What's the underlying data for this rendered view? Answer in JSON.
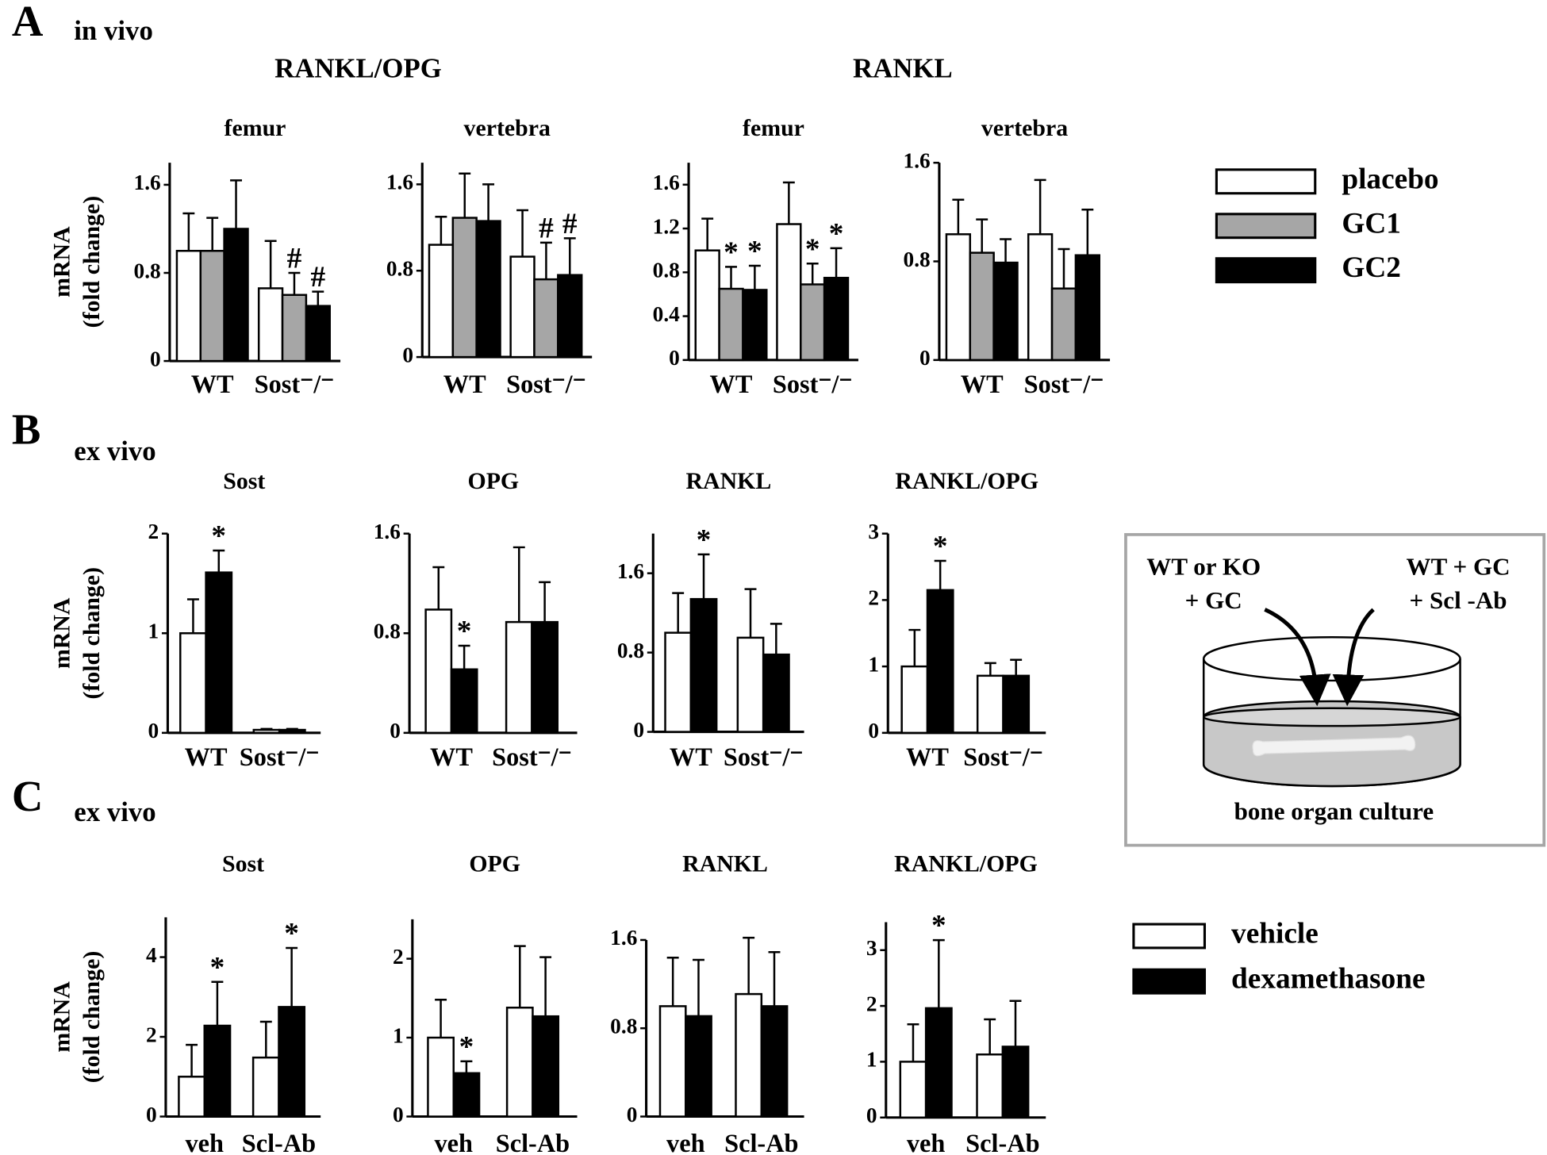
{
  "panels": [
    {
      "letter": "A",
      "label": "in vivo"
    },
    {
      "letter": "B",
      "label": "ex vivo"
    },
    {
      "letter": "C",
      "label": "ex vivo"
    }
  ],
  "group_titles": [
    "RANKL/OPG",
    "RANKL"
  ],
  "chart_data": [
    {
      "type": "bar",
      "title": "femur",
      "ylabel": [
        "mRNA",
        "(fold change)"
      ],
      "categories": [
        "WT",
        "Sost⁻/⁻"
      ],
      "ylim": [
        0,
        1.8
      ],
      "yticks": [
        0,
        0.8,
        1.6
      ],
      "series": [
        {
          "name": "placebo",
          "color": "#ffffff",
          "values": [
            1.0,
            0.66
          ],
          "errors": [
            0.34,
            0.43
          ]
        },
        {
          "name": "GC1",
          "color": "#a6a6a6",
          "values": [
            1.0,
            0.6
          ],
          "errors": [
            0.3,
            0.2
          ],
          "markers": [
            null,
            "#"
          ]
        },
        {
          "name": "GC2",
          "color": "#000000",
          "values": [
            1.2,
            0.5
          ],
          "errors": [
            0.44,
            0.13
          ],
          "markers": [
            null,
            "#"
          ]
        }
      ]
    },
    {
      "type": "bar",
      "title": "vertebra",
      "categories": [
        "WT",
        "Sost⁻/⁻"
      ],
      "ylim": [
        0,
        1.8
      ],
      "yticks": [
        0,
        0.8,
        1.6
      ],
      "series": [
        {
          "name": "placebo",
          "color": "#ffffff",
          "values": [
            1.04,
            0.93
          ],
          "errors": [
            0.26,
            0.43
          ]
        },
        {
          "name": "GC1",
          "color": "#a6a6a6",
          "values": [
            1.29,
            0.72
          ],
          "errors": [
            0.41,
            0.34
          ],
          "markers": [
            null,
            "#"
          ]
        },
        {
          "name": "GC2",
          "color": "#000000",
          "values": [
            1.26,
            0.76
          ],
          "errors": [
            0.34,
            0.34
          ],
          "markers": [
            null,
            "#"
          ]
        }
      ]
    },
    {
      "type": "bar",
      "title": "femur",
      "categories": [
        "WT",
        "Sost⁻/⁻"
      ],
      "ylim": [
        0,
        1.8
      ],
      "yticks": [
        0,
        0.4,
        0.8,
        1.2,
        1.6
      ],
      "series": [
        {
          "name": "placebo",
          "color": "#ffffff",
          "values": [
            1.0,
            1.24
          ],
          "errors": [
            0.29,
            0.38
          ]
        },
        {
          "name": "GC1",
          "color": "#a6a6a6",
          "values": [
            0.65,
            0.69
          ],
          "errors": [
            0.2,
            0.19
          ],
          "markers": [
            "*",
            "*"
          ]
        },
        {
          "name": "GC2",
          "color": "#000000",
          "values": [
            0.64,
            0.75
          ],
          "errors": [
            0.22,
            0.27
          ],
          "markers": [
            "*",
            "*"
          ]
        }
      ]
    },
    {
      "type": "bar",
      "title": "vertebra",
      "categories": [
        "WT",
        "Sost⁻/⁻"
      ],
      "ylim": [
        0,
        1.6
      ],
      "yticks": [
        0,
        0.8,
        1.6
      ],
      "series": [
        {
          "name": "placebo",
          "color": "#ffffff",
          "values": [
            1.02,
            1.02
          ],
          "errors": [
            0.28,
            0.44
          ]
        },
        {
          "name": "GC1",
          "color": "#a6a6a6",
          "values": [
            0.87,
            0.58
          ],
          "errors": [
            0.27,
            0.32
          ]
        },
        {
          "name": "GC2",
          "color": "#000000",
          "values": [
            0.79,
            0.85
          ],
          "errors": [
            0.19,
            0.37
          ]
        }
      ]
    },
    {
      "type": "bar",
      "title": "Sost",
      "ylabel": [
        "mRNA",
        "(fold change)"
      ],
      "categories": [
        "WT",
        "Sost⁻/⁻"
      ],
      "ylim": [
        0,
        2
      ],
      "yticks": [
        0,
        1,
        2
      ],
      "series": [
        {
          "color": "#ffffff",
          "values": [
            1.0,
            0.03
          ],
          "errors": [
            0.34,
            0.01
          ]
        },
        {
          "color": "#000000",
          "values": [
            1.61,
            0.03
          ],
          "errors": [
            0.22,
            0.01
          ],
          "markers": [
            "*",
            null
          ]
        }
      ]
    },
    {
      "type": "bar",
      "title": "OPG",
      "categories": [
        "WT",
        "Sost⁻/⁻"
      ],
      "ylim": [
        0,
        1.6
      ],
      "yticks": [
        0,
        0.8,
        1.6
      ],
      "series": [
        {
          "color": "#ffffff",
          "values": [
            0.99,
            0.89
          ],
          "errors": [
            0.34,
            0.6
          ]
        },
        {
          "color": "#000000",
          "values": [
            0.51,
            0.89
          ],
          "errors": [
            0.19,
            0.32
          ],
          "markers": [
            "*",
            null
          ]
        }
      ]
    },
    {
      "type": "bar",
      "title": "RANKL",
      "categories": [
        "WT",
        "Sost⁻/⁻"
      ],
      "ylim": [
        0,
        2
      ],
      "yticks": [
        0,
        0.8,
        1.6
      ],
      "series": [
        {
          "color": "#ffffff",
          "values": [
            1.0,
            0.95
          ],
          "errors": [
            0.4,
            0.49
          ]
        },
        {
          "color": "#000000",
          "values": [
            1.34,
            0.78
          ],
          "errors": [
            0.45,
            0.31
          ],
          "markers": [
            "*",
            null
          ]
        }
      ]
    },
    {
      "type": "bar",
      "title": "RANKL/OPG",
      "categories": [
        "WT",
        "Sost⁻/⁻"
      ],
      "ylim": [
        0,
        3
      ],
      "yticks": [
        0,
        1,
        2,
        3
      ],
      "series": [
        {
          "color": "#ffffff",
          "values": [
            1.0,
            0.86
          ],
          "errors": [
            0.55,
            0.19
          ]
        },
        {
          "color": "#000000",
          "values": [
            2.15,
            0.86
          ],
          "errors": [
            0.44,
            0.24
          ],
          "markers": [
            "*",
            null
          ]
        }
      ]
    },
    {
      "type": "bar",
      "title": "Sost",
      "ylabel": [
        "mRNA",
        "(fold change)"
      ],
      "categories": [
        "veh",
        "Scl-Ab"
      ],
      "ylim": [
        0,
        5
      ],
      "yticks": [
        0,
        2,
        4
      ],
      "series": [
        {
          "name": "vehicle",
          "color": "#ffffff",
          "values": [
            1.0,
            1.48
          ],
          "errors": [
            0.8,
            0.9
          ]
        },
        {
          "name": "dexamethasone",
          "color": "#000000",
          "values": [
            2.28,
            2.75
          ],
          "errors": [
            1.1,
            1.48
          ],
          "markers": [
            "*",
            "*"
          ]
        }
      ]
    },
    {
      "type": "bar",
      "title": "OPG",
      "categories": [
        "veh",
        "Scl-Ab"
      ],
      "ylim": [
        0,
        2.5
      ],
      "yticks": [
        0,
        1,
        2
      ],
      "series": [
        {
          "color": "#ffffff",
          "values": [
            1.0,
            1.38
          ],
          "errors": [
            0.48,
            0.78
          ]
        },
        {
          "color": "#000000",
          "values": [
            0.55,
            1.27
          ],
          "errors": [
            0.15,
            0.75
          ],
          "markers": [
            "*",
            null
          ]
        }
      ]
    },
    {
      "type": "bar",
      "title": "RANKL",
      "categories": [
        "veh",
        "Scl-Ab"
      ],
      "ylim": [
        0,
        1.6
      ],
      "yticks": [
        0,
        0.8,
        1.6
      ],
      "series": [
        {
          "color": "#ffffff",
          "values": [
            1.0,
            1.11
          ],
          "errors": [
            0.44,
            0.51
          ]
        },
        {
          "color": "#000000",
          "values": [
            0.91,
            1.0
          ],
          "errors": [
            0.51,
            0.49
          ]
        }
      ]
    },
    {
      "type": "bar",
      "title": "RANKL/OPG",
      "categories": [
        "veh",
        "Scl-Ab"
      ],
      "ylim": [
        0,
        3.5
      ],
      "yticks": [
        0,
        1,
        2,
        3
      ],
      "series": [
        {
          "color": "#ffffff",
          "values": [
            1.0,
            1.13
          ],
          "errors": [
            0.67,
            0.63
          ]
        },
        {
          "color": "#000000",
          "values": [
            1.96,
            1.27
          ],
          "errors": [
            1.22,
            0.82
          ],
          "markers": [
            "*",
            null
          ]
        }
      ]
    }
  ],
  "diagram": {
    "left_label": [
      "WT or KO",
      "+ GC"
    ],
    "right_label": [
      "WT + GC",
      "+ Scl -Ab"
    ],
    "caption": "bone organ culture"
  }
}
